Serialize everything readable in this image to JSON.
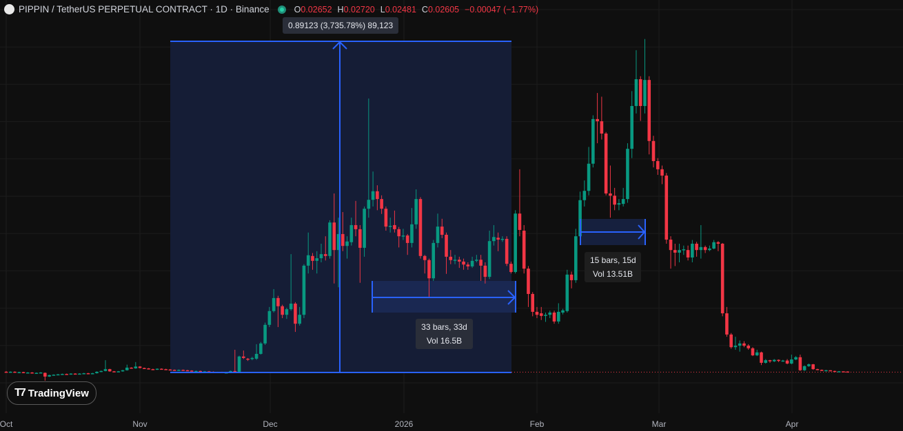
{
  "header": {
    "symbol_title": "PIPPIN / TetherUS PERPETUAL CONTRACT · 1D · Binance",
    "ohlc": {
      "o_label": "O",
      "o": "0.02652",
      "h_label": "H",
      "h": "0.02720",
      "l_label": "L",
      "l": "0.02481",
      "c_label": "C",
      "c": "0.02605",
      "change": "−0.00047 (−1.77%)"
    }
  },
  "colors": {
    "up": "#089981",
    "down": "#f23645",
    "drawing": "#2962ff",
    "background": "#0f0f0f",
    "range_fill": "#151d36"
  },
  "measurements": {
    "price_range": {
      "label": "0.89123 (3,735.78%) 89,123"
    },
    "date_range_1": {
      "bars": "33 bars, 33d",
      "vol": "Vol 16.5B"
    },
    "date_range_2": {
      "bars": "15 bars, 15d",
      "vol": "Vol 13.51B"
    }
  },
  "time_axis": [
    "Oct",
    "Nov",
    "Dec",
    "2026",
    "Feb",
    "Mar",
    "Apr"
  ],
  "branding": {
    "logo_text": "TradingView"
  },
  "chart_data": {
    "type": "candlestick",
    "interval": "1D",
    "first_date": "Oct 1",
    "current_price_line": 0.02605,
    "ohlc": [
      [
        0.026,
        0.028,
        0.024,
        0.025
      ],
      [
        0.025,
        0.027,
        0.023,
        0.026
      ],
      [
        0.026,
        0.027,
        0.023,
        0.024
      ],
      [
        0.024,
        0.026,
        0.022,
        0.025
      ],
      [
        0.025,
        0.026,
        0.022,
        0.023
      ],
      [
        0.023,
        0.025,
        0.022,
        0.024
      ],
      [
        0.024,
        0.025,
        0.021,
        0.022
      ],
      [
        0.022,
        0.024,
        0.021,
        0.023
      ],
      [
        0.023,
        0.025,
        0.022,
        0.024
      ],
      [
        0.023,
        0.024,
        0.002,
        0.013
      ],
      [
        0.013,
        0.018,
        0.012,
        0.017
      ],
      [
        0.017,
        0.019,
        0.016,
        0.018
      ],
      [
        0.018,
        0.02,
        0.017,
        0.019
      ],
      [
        0.019,
        0.021,
        0.018,
        0.02
      ],
      [
        0.02,
        0.021,
        0.018,
        0.019
      ],
      [
        0.019,
        0.022,
        0.018,
        0.021
      ],
      [
        0.021,
        0.022,
        0.019,
        0.02
      ],
      [
        0.02,
        0.022,
        0.019,
        0.021
      ],
      [
        0.021,
        0.023,
        0.02,
        0.022
      ],
      [
        0.022,
        0.023,
        0.02,
        0.021
      ],
      [
        0.021,
        0.023,
        0.02,
        0.022
      ],
      [
        0.022,
        0.027,
        0.021,
        0.026
      ],
      [
        0.026,
        0.029,
        0.025,
        0.028
      ],
      [
        0.028,
        0.057,
        0.027,
        0.033
      ],
      [
        0.033,
        0.034,
        0.026,
        0.027
      ],
      [
        0.027,
        0.028,
        0.025,
        0.026
      ],
      [
        0.026,
        0.028,
        0.025,
        0.027
      ],
      [
        0.027,
        0.031,
        0.026,
        0.03
      ],
      [
        0.03,
        0.045,
        0.029,
        0.037
      ],
      [
        0.037,
        0.038,
        0.034,
        0.035
      ],
      [
        0.035,
        0.052,
        0.034,
        0.04
      ],
      [
        0.04,
        0.041,
        0.035,
        0.036
      ],
      [
        0.036,
        0.037,
        0.034,
        0.035
      ],
      [
        0.035,
        0.036,
        0.032,
        0.033
      ],
      [
        0.033,
        0.034,
        0.031,
        0.032
      ],
      [
        0.032,
        0.035,
        0.031,
        0.034
      ],
      [
        0.034,
        0.035,
        0.032,
        0.033
      ],
      [
        0.033,
        0.034,
        0.031,
        0.032
      ],
      [
        0.032,
        0.033,
        0.03,
        0.031
      ],
      [
        0.031,
        0.032,
        0.029,
        0.03
      ],
      [
        0.03,
        0.032,
        0.029,
        0.031
      ],
      [
        0.031,
        0.032,
        0.029,
        0.03
      ],
      [
        0.03,
        0.031,
        0.028,
        0.029
      ],
      [
        0.029,
        0.03,
        0.027,
        0.028
      ],
      [
        0.028,
        0.029,
        0.027,
        0.028
      ],
      [
        0.028,
        0.029,
        0.026,
        0.027
      ],
      [
        0.027,
        0.028,
        0.026,
        0.027
      ],
      [
        0.027,
        0.028,
        0.025,
        0.026
      ],
      [
        0.026,
        0.027,
        0.024,
        0.025
      ],
      [
        0.025,
        0.026,
        0.024,
        0.025
      ],
      [
        0.025,
        0.026,
        0.023,
        0.024
      ],
      [
        0.024,
        0.025,
        0.023,
        0.024
      ],
      [
        0.024,
        0.029,
        0.023,
        0.028
      ],
      [
        0.028,
        0.085,
        0.024,
        0.026
      ],
      [
        0.026,
        0.069,
        0.024,
        0.067
      ],
      [
        0.067,
        0.083,
        0.06,
        0.063
      ],
      [
        0.061,
        0.063,
        0.055,
        0.059
      ],
      [
        0.06,
        0.066,
        0.057,
        0.063
      ],
      [
        0.061,
        0.1,
        0.058,
        0.074
      ],
      [
        0.074,
        0.106,
        0.072,
        0.102
      ],
      [
        0.102,
        0.158,
        0.098,
        0.152
      ],
      [
        0.152,
        0.2,
        0.146,
        0.189
      ],
      [
        0.189,
        0.248,
        0.185,
        0.224
      ],
      [
        0.224,
        0.23,
        0.146,
        0.202
      ],
      [
        0.202,
        0.206,
        0.17,
        0.179
      ],
      [
        0.179,
        0.198,
        0.168,
        0.194
      ],
      [
        0.194,
        0.342,
        0.19,
        0.209
      ],
      [
        0.209,
        0.213,
        0.133,
        0.155
      ],
      [
        0.155,
        0.2,
        0.15,
        0.179
      ],
      [
        0.179,
        0.315,
        0.17,
        0.311
      ],
      [
        0.311,
        0.4,
        0.29,
        0.339
      ],
      [
        0.337,
        0.345,
        0.3,
        0.324
      ],
      [
        0.324,
        0.35,
        0.29,
        0.331
      ],
      [
        0.331,
        0.37,
        0.32,
        0.342
      ],
      [
        0.342,
        0.39,
        0.325,
        0.337
      ],
      [
        0.337,
        0.433,
        0.33,
        0.427
      ],
      [
        0.427,
        0.505,
        0.263,
        0.353
      ],
      [
        0.353,
        0.44,
        0.253,
        0.396
      ],
      [
        0.396,
        0.455,
        0.35,
        0.364
      ],
      [
        0.364,
        0.39,
        0.33,
        0.376
      ],
      [
        0.374,
        0.44,
        0.365,
        0.42
      ],
      [
        0.42,
        0.485,
        0.39,
        0.409
      ],
      [
        0.409,
        0.42,
        0.265,
        0.359
      ],
      [
        0.359,
        0.47,
        0.335,
        0.464
      ],
      [
        0.464,
        0.76,
        0.44,
        0.488
      ],
      [
        0.488,
        0.564,
        0.47,
        0.511
      ],
      [
        0.511,
        0.527,
        0.46,
        0.49
      ],
      [
        0.49,
        0.5,
        0.45,
        0.464
      ],
      [
        0.464,
        0.47,
        0.405,
        0.416
      ],
      [
        0.416,
        0.44,
        0.4,
        0.418
      ],
      [
        0.42,
        0.459,
        0.4,
        0.409
      ],
      [
        0.409,
        0.415,
        0.36,
        0.39
      ],
      [
        0.39,
        0.41,
        0.38,
        0.392
      ],
      [
        0.392,
        0.396,
        0.34,
        0.372
      ],
      [
        0.372,
        0.466,
        0.36,
        0.422
      ],
      [
        0.422,
        0.516,
        0.41,
        0.49
      ],
      [
        0.49,
        0.495,
        0.33,
        0.337
      ],
      [
        0.337,
        0.34,
        0.29,
        0.326
      ],
      [
        0.326,
        0.33,
        0.224,
        0.277
      ],
      [
        0.277,
        0.38,
        0.27,
        0.372
      ],
      [
        0.372,
        0.451,
        0.36,
        0.416
      ],
      [
        0.416,
        0.437,
        0.385,
        0.394
      ],
      [
        0.394,
        0.4,
        0.289,
        0.335
      ],
      [
        0.335,
        0.353,
        0.315,
        0.326
      ],
      [
        0.326,
        0.34,
        0.315,
        0.327
      ],
      [
        0.327,
        0.335,
        0.305,
        0.322
      ],
      [
        0.322,
        0.33,
        0.3,
        0.314
      ],
      [
        0.314,
        0.32,
        0.3,
        0.309
      ],
      [
        0.309,
        0.335,
        0.305,
        0.324
      ],
      [
        0.324,
        0.34,
        0.32,
        0.327
      ],
      [
        0.327,
        0.34,
        0.27,
        0.311
      ],
      [
        0.311,
        0.32,
        0.263,
        0.281
      ],
      [
        0.281,
        0.405,
        0.275,
        0.377
      ],
      [
        0.377,
        0.42,
        0.365,
        0.388
      ],
      [
        0.386,
        0.4,
        0.35,
        0.381
      ],
      [
        0.381,
        0.39,
        0.375,
        0.383
      ],
      [
        0.383,
        0.39,
        0.31,
        0.316
      ],
      [
        0.316,
        0.322,
        0.29,
        0.294
      ],
      [
        0.294,
        0.46,
        0.29,
        0.451
      ],
      [
        0.451,
        0.57,
        0.39,
        0.407
      ],
      [
        0.405,
        0.42,
        0.29,
        0.303
      ],
      [
        0.303,
        0.31,
        0.2,
        0.235
      ],
      [
        0.235,
        0.24,
        0.175,
        0.187
      ],
      [
        0.187,
        0.2,
        0.17,
        0.179
      ],
      [
        0.183,
        0.2,
        0.165,
        0.176
      ],
      [
        0.176,
        0.185,
        0.16,
        0.179
      ],
      [
        0.179,
        0.19,
        0.17,
        0.185
      ],
      [
        0.185,
        0.19,
        0.155,
        0.161
      ],
      [
        0.161,
        0.21,
        0.155,
        0.187
      ],
      [
        0.185,
        0.195,
        0.18,
        0.191
      ],
      [
        0.189,
        0.3,
        0.185,
        0.287
      ],
      [
        0.287,
        0.295,
        0.25,
        0.272
      ],
      [
        0.272,
        0.41,
        0.265,
        0.39
      ],
      [
        0.39,
        0.51,
        0.38,
        0.487
      ],
      [
        0.487,
        0.54,
        0.47,
        0.512
      ],
      [
        0.512,
        0.63,
        0.5,
        0.585
      ],
      [
        0.585,
        0.715,
        0.575,
        0.705
      ],
      [
        0.705,
        0.775,
        0.64,
        0.699
      ],
      [
        0.699,
        0.765,
        0.65,
        0.666
      ],
      [
        0.666,
        0.67,
        0.5,
        0.505
      ],
      [
        0.505,
        0.58,
        0.44,
        0.499
      ],
      [
        0.499,
        0.52,
        0.46,
        0.475
      ],
      [
        0.475,
        0.49,
        0.46,
        0.479
      ],
      [
        0.477,
        0.52,
        0.47,
        0.49
      ],
      [
        0.49,
        0.64,
        0.48,
        0.625
      ],
      [
        0.625,
        0.78,
        0.6,
        0.74
      ],
      [
        0.74,
        0.89,
        0.72,
        0.812
      ],
      [
        0.812,
        0.82,
        0.7,
        0.74
      ],
      [
        0.74,
        0.92,
        0.72,
        0.81
      ],
      [
        0.81,
        0.82,
        0.61,
        0.646
      ],
      [
        0.646,
        0.66,
        0.575,
        0.592
      ],
      [
        0.592,
        0.6,
        0.555,
        0.57
      ],
      [
        0.57,
        0.58,
        0.53,
        0.553
      ],
      [
        0.553,
        0.56,
        0.37,
        0.381
      ],
      [
        0.381,
        0.39,
        0.303,
        0.353
      ],
      [
        0.353,
        0.37,
        0.31,
        0.346
      ],
      [
        0.346,
        0.37,
        0.32,
        0.353
      ],
      [
        0.353,
        0.365,
        0.34,
        0.355
      ],
      [
        0.353,
        0.365,
        0.325,
        0.333
      ],
      [
        0.333,
        0.38,
        0.32,
        0.37
      ],
      [
        0.37,
        0.375,
        0.335,
        0.353
      ],
      [
        0.353,
        0.42,
        0.33,
        0.361
      ],
      [
        0.361,
        0.365,
        0.345,
        0.353
      ],
      [
        0.353,
        0.365,
        0.35,
        0.357
      ],
      [
        0.357,
        0.38,
        0.355,
        0.374
      ],
      [
        0.374,
        0.377,
        0.35,
        0.37
      ],
      [
        0.37,
        0.372,
        0.175,
        0.183
      ],
      [
        0.183,
        0.2,
        0.12,
        0.126
      ],
      [
        0.126,
        0.13,
        0.088,
        0.092
      ],
      [
        0.092,
        0.12,
        0.085,
        0.096
      ],
      [
        0.096,
        0.11,
        0.08,
        0.102
      ],
      [
        0.102,
        0.108,
        0.092,
        0.096
      ],
      [
        0.096,
        0.1,
        0.085,
        0.089
      ],
      [
        0.089,
        0.092,
        0.068,
        0.07
      ],
      [
        0.07,
        0.085,
        0.068,
        0.078
      ],
      [
        0.078,
        0.08,
        0.044,
        0.05
      ],
      [
        0.05,
        0.06,
        0.048,
        0.057
      ],
      [
        0.057,
        0.058,
        0.05,
        0.054
      ],
      [
        0.054,
        0.06,
        0.052,
        0.058
      ],
      [
        0.058,
        0.059,
        0.052,
        0.055
      ],
      [
        0.055,
        0.058,
        0.053,
        0.056
      ],
      [
        0.056,
        0.06,
        0.046,
        0.048
      ],
      [
        0.048,
        0.072,
        0.046,
        0.059
      ],
      [
        0.059,
        0.068,
        0.057,
        0.065
      ],
      [
        0.065,
        0.072,
        0.028,
        0.03
      ],
      [
        0.03,
        0.043,
        0.028,
        0.041
      ],
      [
        0.041,
        0.048,
        0.039,
        0.046
      ],
      [
        0.046,
        0.047,
        0.031,
        0.033
      ],
      [
        0.033,
        0.034,
        0.03,
        0.031
      ],
      [
        0.031,
        0.032,
        0.028,
        0.029
      ],
      [
        0.029,
        0.031,
        0.028,
        0.03
      ],
      [
        0.03,
        0.03,
        0.027,
        0.028
      ],
      [
        0.028,
        0.029,
        0.026,
        0.027
      ],
      [
        0.027,
        0.028,
        0.025,
        0.027
      ],
      [
        0.027,
        0.027,
        0.025,
        0.026
      ],
      [
        0.02652,
        0.0272,
        0.02481,
        0.02605
      ]
    ]
  }
}
